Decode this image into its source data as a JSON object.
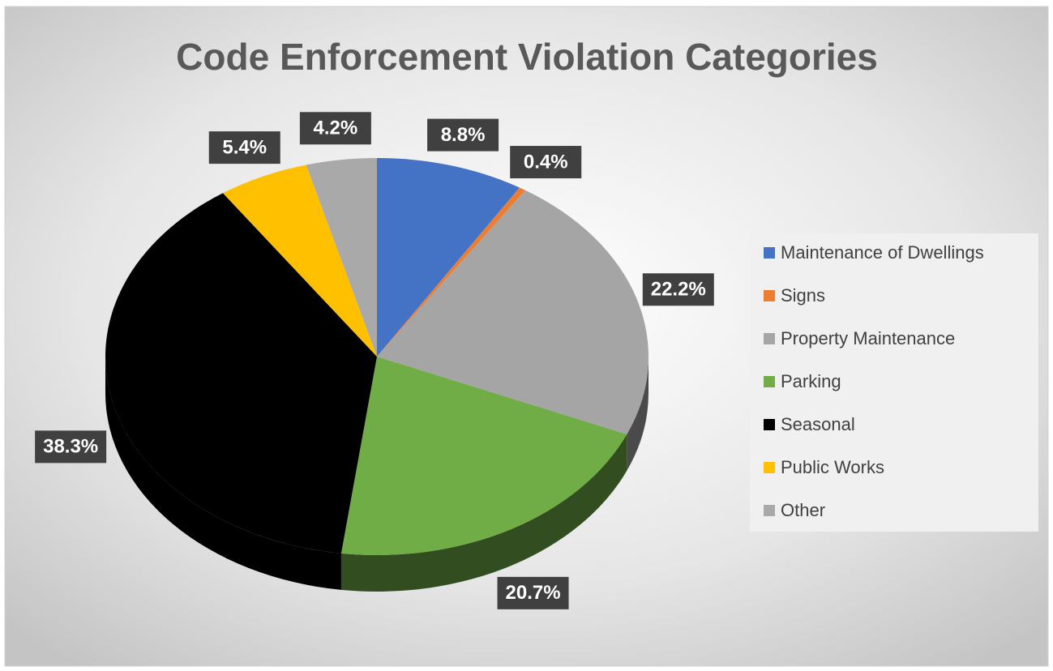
{
  "chart_data": {
    "type": "pie3d",
    "title": "Code Enforcement Violation Categories",
    "categories": [
      "Maintenance of Dwellings",
      "Signs",
      "Property Maintenance",
      "Parking",
      "Seasonal",
      "Public Works",
      "Other"
    ],
    "values": [
      8.8,
      0.4,
      22.2,
      20.7,
      38.3,
      5.4,
      4.2
    ],
    "value_labels": [
      "8.8%",
      "0.4%",
      "22.2%",
      "20.7%",
      "38.3%",
      "5.4%",
      "4.2%"
    ],
    "colors": [
      "#4472c4",
      "#ed7d31",
      "#a5a5a5",
      "#70ad47",
      "#000000",
      "#ffc000",
      "#a9a9a9"
    ],
    "legend": "right"
  }
}
